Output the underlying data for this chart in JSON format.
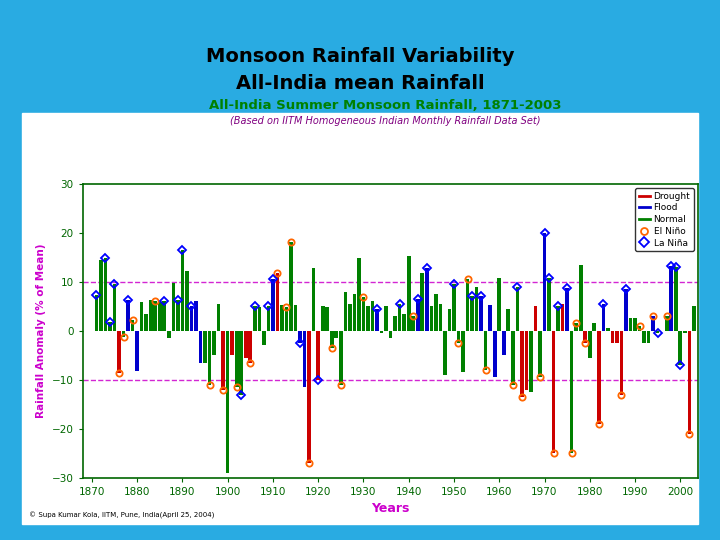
{
  "title_main_line1": "Monsoon Rainfall Variability",
  "title_main_line2": "All-India mean Rainfall",
  "chart_title": "All-India Summer Monsoon Rainfall, 1871-2003",
  "chart_subtitle": "(Based on IITM Homogeneous Indian Monthly Rainfall Data Set)",
  "xlabel": "Years",
  "ylabel": "Rainfall Anomaly (% of Mean)",
  "background_outer": "#29ABE2",
  "background_inner": "#FFFFFF",
  "chart_title_color": "#008000",
  "chart_subtitle_color": "#800080",
  "ylabel_color": "#CC00CC",
  "xlabel_color": "#CC00CC",
  "dashed_line_color": "#CC00CC",
  "dashed_line_y": [
    10,
    -10
  ],
  "years": [
    1871,
    1872,
    1873,
    1874,
    1875,
    1876,
    1877,
    1878,
    1879,
    1880,
    1881,
    1882,
    1883,
    1884,
    1885,
    1886,
    1887,
    1888,
    1889,
    1890,
    1891,
    1892,
    1893,
    1894,
    1895,
    1896,
    1897,
    1898,
    1899,
    1900,
    1901,
    1902,
    1903,
    1904,
    1905,
    1906,
    1907,
    1908,
    1909,
    1910,
    1911,
    1912,
    1913,
    1914,
    1915,
    1916,
    1917,
    1918,
    1919,
    1920,
    1921,
    1922,
    1923,
    1924,
    1925,
    1926,
    1927,
    1928,
    1929,
    1930,
    1931,
    1932,
    1933,
    1934,
    1935,
    1936,
    1937,
    1938,
    1939,
    1940,
    1941,
    1942,
    1943,
    1944,
    1945,
    1946,
    1947,
    1948,
    1949,
    1950,
    1951,
    1952,
    1953,
    1954,
    1955,
    1956,
    1957,
    1958,
    1959,
    1960,
    1961,
    1962,
    1963,
    1964,
    1965,
    1966,
    1967,
    1968,
    1969,
    1970,
    1971,
    1972,
    1973,
    1974,
    1975,
    1976,
    1977,
    1978,
    1979,
    1980,
    1981,
    1982,
    1983,
    1984,
    1985,
    1986,
    1987,
    1988,
    1989,
    1990,
    1991,
    1992,
    1993,
    1994,
    1995,
    1996,
    1997,
    1998,
    1999,
    2000,
    2001,
    2002,
    2003
  ],
  "anomaly": [
    7.2,
    14.5,
    14.8,
    1.8,
    9.5,
    -8.6,
    -1.2,
    6.2,
    2.1,
    -8.3,
    5.8,
    3.5,
    6.2,
    6.1,
    5.9,
    6.0,
    -1.5,
    9.8,
    6.3,
    16.5,
    12.2,
    5.0,
    6.0,
    -6.5,
    -6.5,
    -11.0,
    -5.0,
    5.5,
    -12.0,
    -29.0,
    -5.0,
    -11.5,
    -13.0,
    -5.5,
    -6.5,
    5.0,
    4.8,
    -3.0,
    5.0,
    10.5,
    11.7,
    5.2,
    4.8,
    18.0,
    5.2,
    -2.5,
    -11.5,
    -27.0,
    12.8,
    -10.0,
    5.0,
    4.8,
    -3.5,
    -1.5,
    -11.0,
    7.8,
    5.4,
    7.5,
    14.8,
    6.8,
    5.0,
    6.0,
    4.5,
    -0.5,
    5.0,
    -1.5,
    3.0,
    5.5,
    3.5,
    15.2,
    3.0,
    6.5,
    11.8,
    12.8,
    5.0,
    7.5,
    5.5,
    -9.0,
    4.5,
    9.5,
    -2.5,
    -8.5,
    10.5,
    7.0,
    9.0,
    7.0,
    -8.0,
    5.2,
    -9.5,
    10.8,
    -5.0,
    4.5,
    -11.0,
    9.0,
    -13.5,
    -12.0,
    -12.5,
    5.0,
    -9.5,
    20.0,
    10.8,
    -25.0,
    5.0,
    5.5,
    8.8,
    -25.0,
    1.5,
    13.5,
    -2.5,
    -5.5,
    1.5,
    -19.0,
    5.5,
    0.5,
    -2.5,
    -2.5,
    -13.0,
    8.5,
    2.5,
    2.5,
    1.0,
    -2.5,
    -2.5,
    3.0,
    -0.5,
    0.0,
    3.0,
    13.2,
    13.0,
    -7.0,
    -0.5,
    -21.0,
    5.0
  ],
  "categories": {
    "drought": [
      1876,
      1899,
      1901,
      1904,
      1905,
      1911,
      1918,
      1920,
      1965,
      1966,
      1968,
      1972,
      1974,
      1979,
      1982,
      1985,
      1986,
      1987,
      2002
    ],
    "flood": [
      1878,
      1880,
      1892,
      1893,
      1894,
      1910,
      1916,
      1917,
      1933,
      1942,
      1944,
      1956,
      1958,
      1959,
      1961,
      1970,
      1975,
      1983,
      1988,
      1994,
      1998
    ],
    "el_nino": [
      1876,
      1877,
      1879,
      1884,
      1896,
      1899,
      1902,
      1905,
      1911,
      1913,
      1914,
      1918,
      1923,
      1925,
      1930,
      1941,
      1951,
      1953,
      1957,
      1963,
      1965,
      1969,
      1972,
      1976,
      1977,
      1979,
      1982,
      1987,
      1991,
      1994,
      1997,
      2002
    ],
    "la_nina": [
      1871,
      1873,
      1874,
      1875,
      1878,
      1886,
      1889,
      1890,
      1892,
      1903,
      1906,
      1909,
      1910,
      1916,
      1920,
      1933,
      1938,
      1942,
      1944,
      1950,
      1954,
      1956,
      1964,
      1970,
      1971,
      1973,
      1975,
      1983,
      1988,
      1995,
      1998,
      1999,
      2000
    ]
  },
  "bar_width": 0.8,
  "normal_color": "#008000",
  "drought_color": "#CC0000",
  "flood_color": "#0000CC",
  "el_nino_color": "#FF6600",
  "la_nina_color": "#0000FF",
  "copyright": "© Supa Kumar Kola, IITM, Pune, India(April 25, 2004)"
}
